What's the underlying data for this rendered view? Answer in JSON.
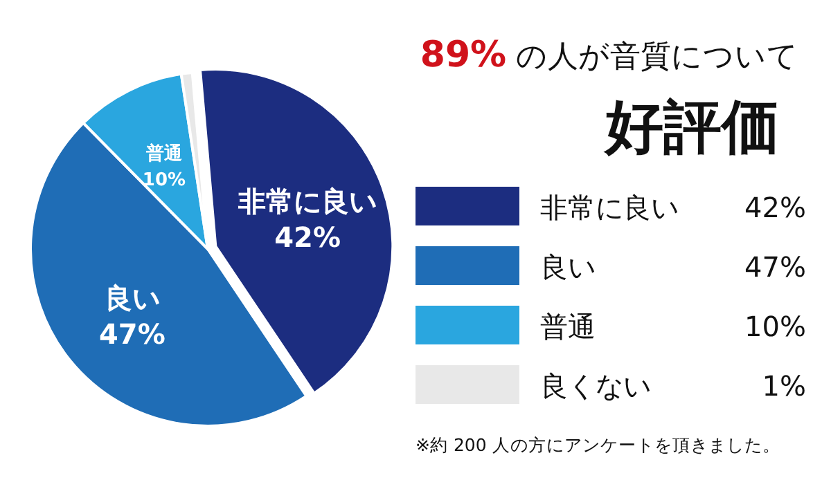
{
  "chart_data": {
    "type": "pie",
    "title": "89% の人が音質について",
    "subtitle": "好評価",
    "categories": [
      "非常に良い",
      "良い",
      "普通",
      "良くない"
    ],
    "values": [
      42,
      47,
      10,
      1
    ],
    "value_labels": [
      "42%",
      "47%",
      "10%",
      "1%"
    ],
    "colors": [
      "#1c2d80",
      "#1f6db6",
      "#2aa6df",
      "#e8e8e8"
    ],
    "legend": "right",
    "annotations": [
      "※約 200 人の方にアンケートを頂きました。"
    ]
  }
}
